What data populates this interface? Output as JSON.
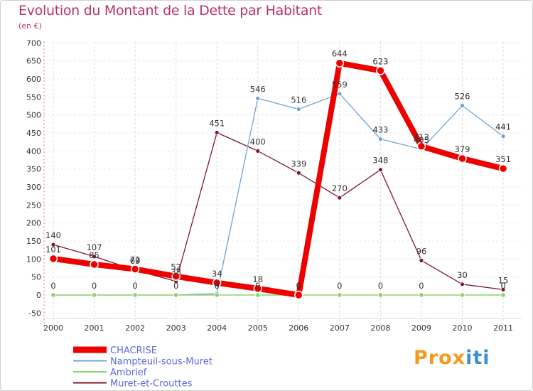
{
  "title": "Evolution du Montant de la Dette par Habitant",
  "subtitle": "(en €)",
  "logo": {
    "text": "Proxiti",
    "colors": [
      "#f39a1f",
      "#3a8fd9"
    ]
  },
  "chart_data": {
    "type": "line",
    "title": "Evolution du Montant de la Dette par Habitant",
    "ylabel": "(en €)",
    "xlabel": "",
    "ylim": [
      -50,
      700
    ],
    "yticks": [
      -50,
      0,
      50,
      100,
      150,
      200,
      250,
      300,
      350,
      400,
      450,
      500,
      550,
      600,
      650,
      700
    ],
    "categories": [
      "2000",
      "2001",
      "2002",
      "2003",
      "2004",
      "2005",
      "2006",
      "2007",
      "2008",
      "2009",
      "2010",
      "2011"
    ],
    "grid": "vertical-dashed",
    "legend_position": "bottom-left",
    "series": [
      {
        "name": "Muret-et-Crouttes",
        "color": "#7a1a2a",
        "width": 1.3,
        "marker": 3,
        "values": [
          140,
          107,
          69,
          38,
          451,
          400,
          339,
          270,
          348,
          96,
          30,
          15
        ]
      },
      {
        "name": "Nampteuil-sous-Muret",
        "color": "#6fa3d6",
        "width": 1.3,
        "marker": 3,
        "values": [
          0,
          0,
          0,
          0,
          4,
          546,
          516,
          559,
          433,
          405,
          526,
          441
        ]
      },
      {
        "name": "Ambrief",
        "color": "#8fd06a",
        "width": 1.6,
        "marker": 3.2,
        "values": [
          0,
          0,
          0,
          0,
          0,
          0,
          0,
          0,
          0,
          0,
          0,
          0
        ]
      },
      {
        "name": "CHACRISE",
        "color": "#ee0000",
        "width": 8,
        "marker": 5.5,
        "values": [
          101,
          85,
          72,
          52,
          34,
          18,
          0,
          644,
          623,
          413,
          379,
          351
        ]
      }
    ],
    "legend_order": [
      "CHACRISE",
      "Nampteuil-sous-Muret",
      "Ambrief",
      "Muret-et-Crouttes"
    ],
    "data_labels": {
      "Muret-et-Crouttes": [
        "140",
        "107",
        "69",
        "38",
        "451",
        "400",
        "339",
        "270",
        "348",
        "96",
        "30",
        "15"
      ],
      "Nampteuil-sous-Muret": [
        "",
        "",
        "",
        "",
        "4",
        "546",
        "516",
        "559",
        "433",
        "405",
        "526",
        "441"
      ],
      "Ambrief": [
        "0",
        "0",
        "0",
        "0",
        "0",
        "0",
        "0",
        "0",
        "0",
        "0",
        "",
        "0"
      ],
      "CHACRISE": [
        "101",
        "85",
        "72",
        "52",
        "34",
        "18",
        "0",
        "644",
        "623",
        "413",
        "379",
        "351"
      ]
    }
  }
}
